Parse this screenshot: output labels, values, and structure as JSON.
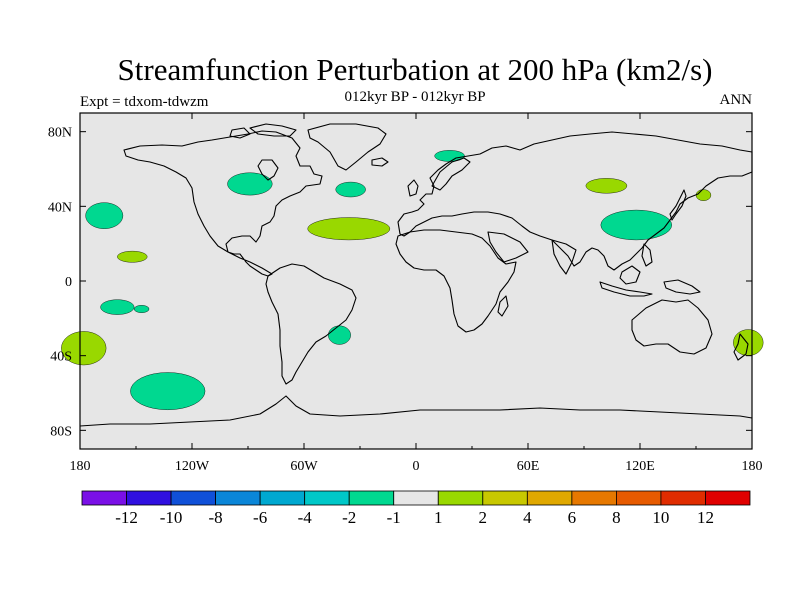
{
  "header": {
    "title": "Streamfunction Perturbation at 200 hPa (km2/s)",
    "subtitle": "012kyr BP - 012kyr BP",
    "left_label": "Expt = tdxom-tdwzm",
    "right_label": "ANN"
  },
  "map": {
    "lon_ticks": [
      "180",
      "120W",
      "60W",
      "0",
      "60E",
      "120E",
      "180"
    ],
    "lat_ticks": [
      "80N",
      "40N",
      "0",
      "40S",
      "80S"
    ],
    "background_color": "#e6e6e6",
    "coastline_color": "#000000"
  },
  "anomalies": [
    {
      "lon": -167,
      "lat": 35,
      "rlon": 10,
      "rlat": 7,
      "color": "#00d890"
    },
    {
      "lon": -152,
      "lat": 13,
      "rlon": 8,
      "rlat": 3,
      "color": "#99d800"
    },
    {
      "lon": -160,
      "lat": -14,
      "rlon": 9,
      "rlat": 4,
      "color": "#00d890"
    },
    {
      "lon": -147,
      "lat": -15,
      "rlon": 4,
      "rlat": 2,
      "color": "#00d890"
    },
    {
      "lon": -178,
      "lat": -36,
      "rlon": 12,
      "rlat": 9,
      "color": "#99d800"
    },
    {
      "lon": -133,
      "lat": -59,
      "rlon": 20,
      "rlat": 10,
      "color": "#00d890"
    },
    {
      "lon": -89,
      "lat": 52,
      "rlon": 12,
      "rlat": 6,
      "color": "#00d890"
    },
    {
      "lon": -36,
      "lat": 28,
      "rlon": 22,
      "rlat": 6,
      "color": "#99d800"
    },
    {
      "lon": -35,
      "lat": 49,
      "rlon": 8,
      "rlat": 4,
      "color": "#00d890"
    },
    {
      "lon": 18,
      "lat": 67,
      "rlon": 8,
      "rlat": 3,
      "color": "#00d890"
    },
    {
      "lon": -41,
      "lat": -29,
      "rlon": 6,
      "rlat": 5,
      "color": "#00d890"
    },
    {
      "lon": 102,
      "lat": 51,
      "rlon": 11,
      "rlat": 4,
      "color": "#99d800"
    },
    {
      "lon": 154,
      "lat": 46,
      "rlon": 4,
      "rlat": 3,
      "color": "#99d800"
    },
    {
      "lon": 118,
      "lat": 30,
      "rlon": 19,
      "rlat": 8,
      "color": "#00d890"
    },
    {
      "lon": 178,
      "lat": -33,
      "rlon": 8,
      "rlat": 7,
      "color": "#99d800"
    }
  ],
  "colorbar": {
    "labels": [
      "-12",
      "-10",
      "-8",
      "-6",
      "-4",
      "-2",
      "-1",
      "1",
      "2",
      "4",
      "6",
      "8",
      "10",
      "12"
    ],
    "colors": [
      "#7a10e6",
      "#3010e0",
      "#1050d8",
      "#0a86d8",
      "#00a8d0",
      "#00c8c8",
      "#00d890",
      "#e6e6e6",
      "#99d800",
      "#c8c800",
      "#e0a800",
      "#e67800",
      "#e65a00",
      "#e02c00",
      "#e00000"
    ]
  }
}
